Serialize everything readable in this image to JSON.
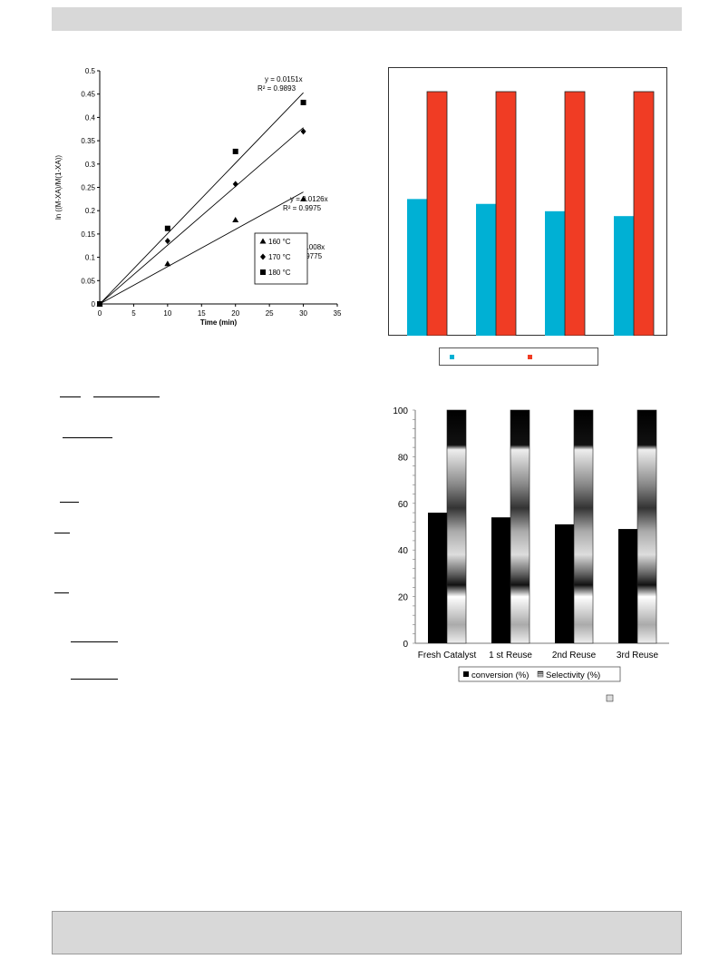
{
  "chart_data": [
    {
      "type": "scatter",
      "xlabel": "Time (min)",
      "ylabel": "ln ((M-XA)/M(1-XA))",
      "xlim": [
        0,
        35
      ],
      "ylim": [
        0,
        0.5
      ],
      "xticks": [
        0,
        5,
        10,
        15,
        20,
        25,
        30,
        35
      ],
      "yticks": [
        0,
        0.05,
        0.1,
        0.15,
        0.2,
        0.25,
        0.3,
        0.35,
        0.4,
        0.45,
        0.5
      ],
      "legend_position": "lower-right",
      "series": [
        {
          "name": "160 °C",
          "marker": "triangle",
          "x": [
            0,
            10,
            20,
            30
          ],
          "y": [
            0,
            0.086,
            0.18,
            0.225
          ],
          "fit_slope": 0.008,
          "equation": "y = 0.008x",
          "r2": "R² = 0.9775"
        },
        {
          "name": "170 °C",
          "marker": "diamond",
          "x": [
            0,
            10,
            20,
            30
          ],
          "y": [
            0,
            0.135,
            0.257,
            0.37
          ],
          "fit_slope": 0.0126,
          "equation": "y = 0.0126x",
          "r2": "R² = 0.9975"
        },
        {
          "name": "180 °C",
          "marker": "square",
          "x": [
            0,
            10,
            20,
            30
          ],
          "y": [
            0,
            0.162,
            0.327,
            0.432
          ],
          "fit_slope": 0.0151,
          "equation": "y = 0.0151x",
          "r2": "R² = 0.9893"
        }
      ]
    },
    {
      "type": "bar",
      "categories": [
        "",
        "",
        "",
        ""
      ],
      "ylim": [
        0,
        100
      ],
      "legend_position": "bottom",
      "series": [
        {
          "name": "",
          "color": "#00b0d4",
          "values": [
            56,
            54,
            51,
            49
          ]
        },
        {
          "name": "",
          "color": "#f03c24",
          "values": [
            100,
            100,
            100,
            100
          ]
        }
      ]
    },
    {
      "type": "bar",
      "categories": [
        "Fresh Catalyst",
        "1 st Reuse",
        "2nd Reuse",
        "3rd Reuse"
      ],
      "ylim": [
        0,
        100
      ],
      "yticks": [
        0,
        20,
        40,
        60,
        80,
        100
      ],
      "legend_position": "bottom",
      "series": [
        {
          "name": "conversion (%)",
          "color": "#000000",
          "values": [
            56,
            54,
            51,
            49
          ]
        },
        {
          "name": "Selectivity (%)",
          "color": "gradient",
          "values": [
            100,
            100,
            100,
            100
          ]
        }
      ]
    }
  ]
}
